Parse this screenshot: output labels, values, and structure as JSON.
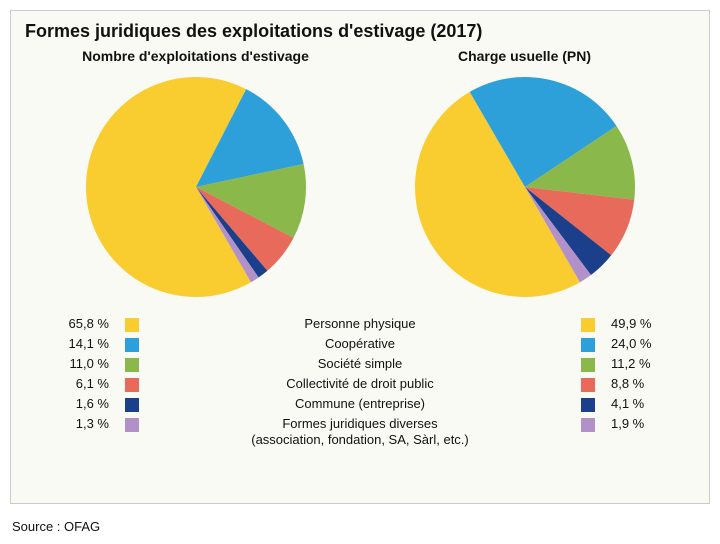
{
  "title": "Formes juridiques des exploitations d'estivage (2017)",
  "subtitle_left": "Nombre d'exploitations d'estivage",
  "subtitle_right": "Charge usuelle (PN)",
  "source": "Source : OFAG",
  "background_color": "#fafaf5",
  "border_color": "#cccccc",
  "text_color": "#111111",
  "title_fontsize": 18,
  "subtitle_fontsize": 14,
  "legend_fontsize": 13,
  "categories": [
    {
      "label": "Personne physique",
      "color": "#f9cc2f",
      "left_pct": "65,8 %",
      "right_pct": "49,9 %",
      "left_val": 65.8,
      "right_val": 49.9
    },
    {
      "label": "Coopérative",
      "color": "#2ea0d9",
      "left_pct": "14,1 %",
      "right_pct": "24,0 %",
      "left_val": 14.1,
      "right_val": 24.0
    },
    {
      "label": "Société simple",
      "color": "#8bb84a",
      "left_pct": "11,0 %",
      "right_pct": "11,2 %",
      "left_val": 11.0,
      "right_val": 11.2
    },
    {
      "label": "Collectivité de droit public",
      "color": "#e86a5a",
      "left_pct": "6,1 %",
      "right_pct": "8,8 %",
      "left_val": 6.1,
      "right_val": 8.8
    },
    {
      "label": "Commune (entreprise)",
      "color": "#1c3f8c",
      "left_pct": "1,6 %",
      "right_pct": "4,1 %",
      "left_val": 1.6,
      "right_val": 4.1
    },
    {
      "label": "Formes juridiques diverses\n(association, fondation, SA, Sàrl, etc.)",
      "color": "#b191c8",
      "left_pct": "1,3 %",
      "right_pct": "1,9 %",
      "left_val": 1.3,
      "right_val": 1.9
    }
  ],
  "charts": {
    "type": "pie",
    "radius": 110,
    "start_angle_deg": 60,
    "direction": "clockwise"
  }
}
